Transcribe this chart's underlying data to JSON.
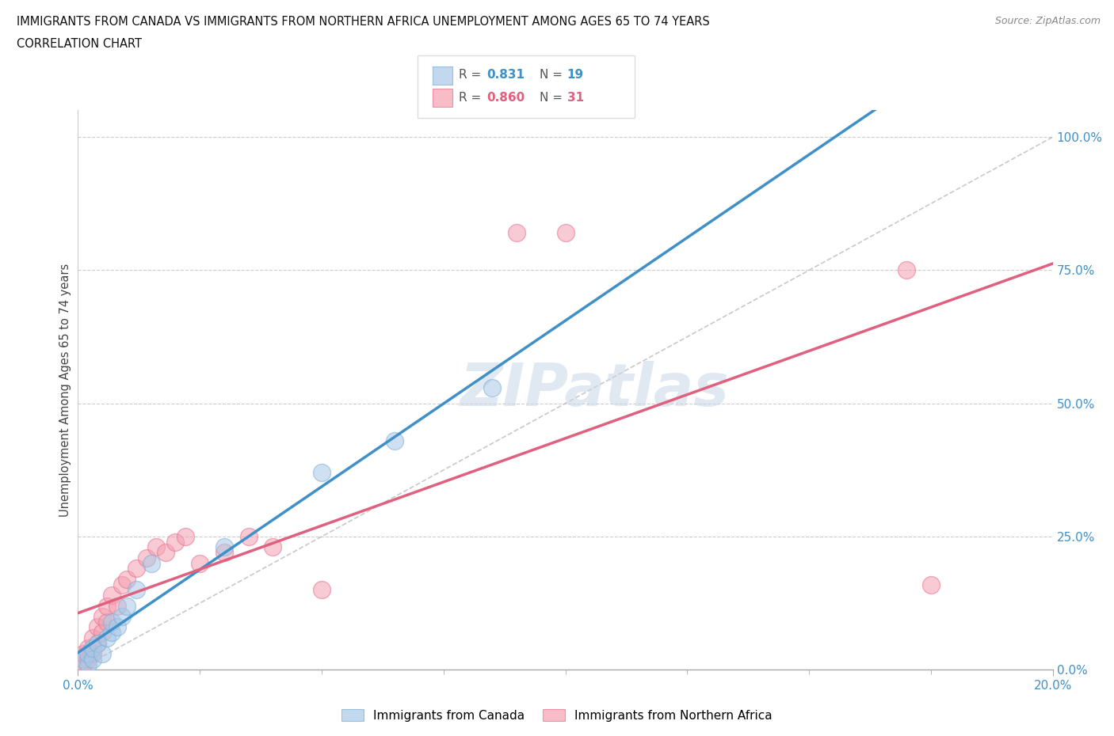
{
  "title_line1": "IMMIGRANTS FROM CANADA VS IMMIGRANTS FROM NORTHERN AFRICA UNEMPLOYMENT AMONG AGES 65 TO 74 YEARS",
  "title_line2": "CORRELATION CHART",
  "source": "Source: ZipAtlas.com",
  "ylabel": "Unemployment Among Ages 65 to 74 years",
  "xlim": [
    0.0,
    0.2
  ],
  "ylim": [
    0.0,
    1.05
  ],
  "ytick_positions": [
    0.0,
    0.25,
    0.5,
    0.75,
    1.0
  ],
  "ytick_labels": [
    "0.0%",
    "25.0%",
    "50.0%",
    "75.0%",
    "100.0%"
  ],
  "xtick_major": [
    0.0,
    0.2
  ],
  "xtick_major_labels": [
    "0.0%",
    "20.0%"
  ],
  "xtick_minor": [
    0.025,
    0.05,
    0.075,
    0.1,
    0.125,
    0.15,
    0.175
  ],
  "canada_R": 0.831,
  "canada_N": 19,
  "africa_R": 0.86,
  "africa_N": 31,
  "canada_color_fill": "#a8c8e8",
  "canada_color_edge": "#7ab0d4",
  "africa_color_fill": "#f4a0b0",
  "africa_color_edge": "#e87090",
  "canada_line_color": "#4090c8",
  "africa_line_color": "#e06080",
  "ref_line_color": "#bbbbbb",
  "tick_label_color": "#4090c8",
  "watermark": "ZIPatlas",
  "canada_x": [
    0.001,
    0.002,
    0.002,
    0.003,
    0.003,
    0.004,
    0.005,
    0.006,
    0.007,
    0.007,
    0.008,
    0.009,
    0.01,
    0.012,
    0.015,
    0.03,
    0.05,
    0.065,
    0.085
  ],
  "canada_y": [
    0.02,
    0.01,
    0.03,
    0.02,
    0.04,
    0.05,
    0.03,
    0.06,
    0.07,
    0.09,
    0.08,
    0.1,
    0.12,
    0.15,
    0.2,
    0.23,
    0.37,
    0.43,
    0.53
  ],
  "africa_x": [
    0.001,
    0.001,
    0.002,
    0.002,
    0.003,
    0.003,
    0.004,
    0.004,
    0.005,
    0.005,
    0.006,
    0.006,
    0.007,
    0.008,
    0.009,
    0.01,
    0.012,
    0.014,
    0.016,
    0.018,
    0.02,
    0.022,
    0.025,
    0.03,
    0.035,
    0.04,
    0.05,
    0.09,
    0.1,
    0.17,
    0.175
  ],
  "africa_y": [
    0.01,
    0.03,
    0.02,
    0.04,
    0.03,
    0.06,
    0.05,
    0.08,
    0.07,
    0.1,
    0.09,
    0.12,
    0.14,
    0.12,
    0.16,
    0.17,
    0.19,
    0.21,
    0.23,
    0.22,
    0.24,
    0.25,
    0.2,
    0.22,
    0.25,
    0.23,
    0.15,
    0.82,
    0.82,
    0.75,
    0.16
  ]
}
